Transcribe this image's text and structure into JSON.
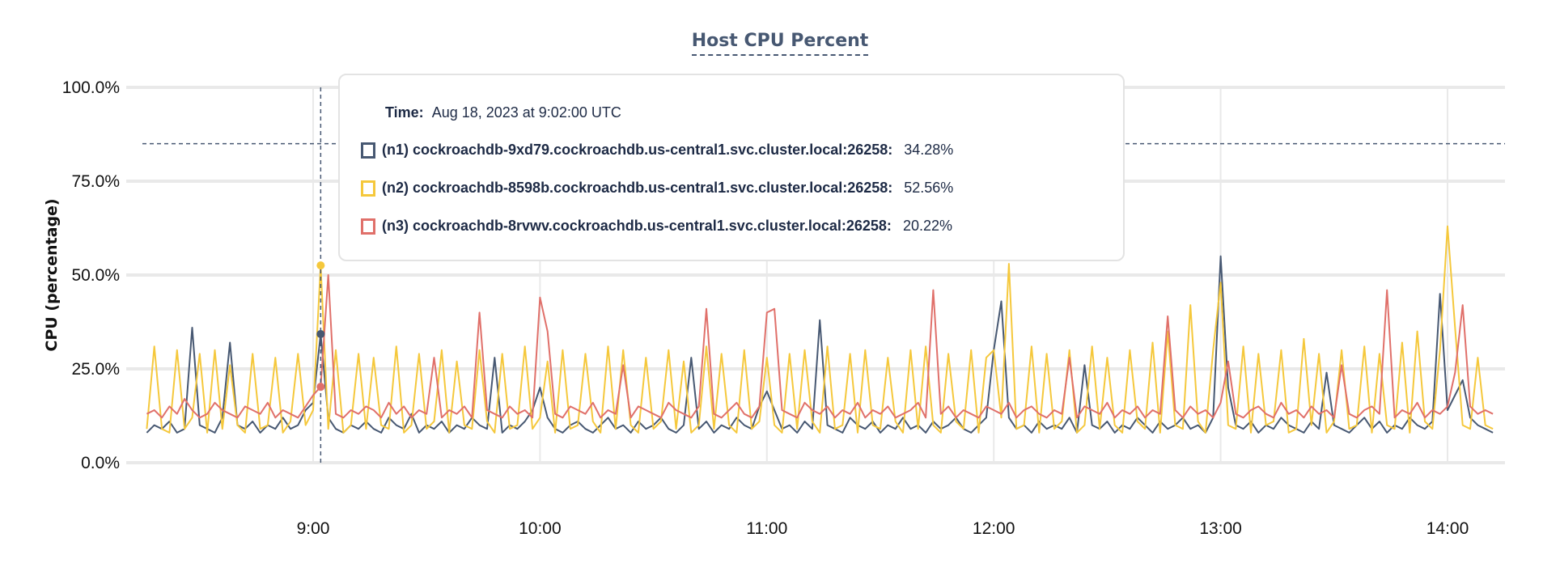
{
  "chart_data": {
    "type": "line",
    "title": "Host CPU Percent",
    "ylabel": "CPU (percentage)",
    "xlabel": "",
    "ylim": [
      0,
      100
    ],
    "yticks": [
      "0.0%",
      "25.0%",
      "50.0%",
      "75.0%",
      "100.0%"
    ],
    "ytick_values": [
      0,
      25,
      50,
      75,
      100
    ],
    "xticks": [
      "9:00",
      "10:00",
      "11:00",
      "12:00",
      "13:00",
      "14:00"
    ],
    "x_start": "08:16",
    "x_end": "14:12",
    "x_step_minutes": 2,
    "grid": true,
    "threshold": 85,
    "series": [
      {
        "name": "(n1) cockroachdb-9xd79.cockroachdb.us-central1.svc.cluster.local:26258",
        "color": "#475872",
        "values": [
          8,
          10,
          9,
          11,
          8,
          9,
          36,
          10,
          9,
          8,
          12,
          32,
          10,
          9,
          11,
          8,
          10,
          9,
          12,
          9,
          10,
          14,
          16,
          34.28,
          12,
          9,
          8,
          10,
          9,
          11,
          9,
          8,
          12,
          10,
          9,
          13,
          8,
          10,
          9,
          11,
          8,
          10,
          9,
          12,
          10,
          9,
          28,
          8,
          10,
          9,
          11,
          14,
          20,
          12,
          9,
          8,
          10,
          11,
          9,
          8,
          10,
          12,
          9,
          10,
          8,
          11,
          9,
          10,
          12,
          9,
          8,
          10,
          28,
          9,
          11,
          8,
          10,
          9,
          12,
          10,
          9,
          15,
          19,
          14,
          9,
          10,
          8,
          11,
          9,
          38,
          10,
          9,
          8,
          12,
          10,
          9,
          11,
          8,
          10,
          9,
          12,
          9,
          10,
          8,
          11,
          9,
          10,
          12,
          9,
          8,
          10,
          12,
          30,
          43,
          12,
          9,
          10,
          8,
          11,
          9,
          10,
          9,
          12,
          8,
          26,
          10,
          9,
          11,
          8,
          10,
          9,
          12,
          10,
          8,
          11,
          9,
          10,
          12,
          9,
          10,
          8,
          12,
          55,
          20,
          10,
          9,
          11,
          8,
          10,
          9,
          12,
          10,
          9,
          8,
          11,
          9,
          24,
          10,
          9,
          8,
          10,
          12,
          9,
          11,
          8,
          10,
          9,
          12,
          10,
          9,
          11,
          45,
          14,
          18,
          22,
          12,
          10,
          9,
          8
        ]
      },
      {
        "name": "(n2) cockroachdb-8598b.cockroachdb.us-central1.svc.cluster.local:26258",
        "color": "#f5c83c",
        "values": [
          9,
          31,
          9,
          8,
          30,
          9,
          12,
          29,
          8,
          30,
          9,
          26,
          10,
          8,
          29,
          9,
          10,
          28,
          8,
          11,
          29,
          10,
          14,
          52.56,
          9,
          30,
          8,
          10,
          29,
          9,
          28,
          10,
          9,
          31,
          8,
          10,
          29,
          9,
          11,
          30,
          8,
          27,
          10,
          9,
          30,
          11,
          8,
          29,
          9,
          10,
          31,
          9,
          12,
          27,
          8,
          30,
          9,
          10,
          29,
          11,
          8,
          31,
          9,
          30,
          10,
          8,
          28,
          9,
          11,
          30,
          9,
          27,
          8,
          10,
          31,
          9,
          29,
          10,
          8,
          30,
          9,
          11,
          28,
          10,
          8,
          29,
          9,
          30,
          11,
          8,
          31,
          9,
          10,
          29,
          8,
          30,
          10,
          9,
          28,
          11,
          8,
          30,
          9,
          31,
          10,
          8,
          29,
          11,
          9,
          30,
          8,
          28,
          30,
          12,
          53,
          9,
          10,
          31,
          8,
          29,
          9,
          11,
          30,
          8,
          10,
          31,
          9,
          28,
          10,
          8,
          30,
          11,
          9,
          32,
          8,
          35,
          10,
          9,
          42,
          11,
          8,
          30,
          48,
          10,
          9,
          31,
          8,
          29,
          10,
          11,
          30,
          8,
          9,
          33,
          10,
          29,
          8,
          11,
          30,
          9,
          10,
          31,
          8,
          29,
          10,
          9,
          32,
          8,
          35,
          11,
          9,
          30,
          63,
          36,
          10,
          9,
          28,
          10,
          9
        ]
      },
      {
        "name": "(n3) cockroachdb-8rvwv.cockroachdb.us-central1.svc.cluster.local:26258",
        "color": "#e0706a",
        "values": [
          13,
          14,
          12,
          15,
          13,
          17,
          14,
          12,
          13,
          16,
          14,
          13,
          12,
          15,
          14,
          13,
          16,
          12,
          14,
          13,
          12,
          15,
          18,
          20.22,
          50,
          13,
          12,
          14,
          13,
          15,
          14,
          12,
          16,
          13,
          15,
          12,
          14,
          13,
          28,
          12,
          14,
          13,
          15,
          12,
          40,
          14,
          13,
          12,
          15,
          13,
          14,
          12,
          44,
          35,
          13,
          12,
          15,
          14,
          13,
          16,
          12,
          14,
          13,
          26,
          12,
          15,
          14,
          13,
          12,
          16,
          14,
          13,
          12,
          15,
          41,
          13,
          12,
          14,
          16,
          13,
          12,
          15,
          40,
          41,
          14,
          13,
          12,
          16,
          14,
          13,
          15,
          12,
          14,
          13,
          16,
          12,
          14,
          13,
          15,
          12,
          13,
          14,
          16,
          12,
          46,
          13,
          15,
          12,
          14,
          13,
          12,
          15,
          14,
          13,
          16,
          12,
          14,
          15,
          13,
          12,
          14,
          13,
          28,
          12,
          15,
          14,
          13,
          16,
          12,
          14,
          13,
          15,
          12,
          14,
          13,
          39,
          14,
          12,
          15,
          13,
          14,
          12,
          16,
          27,
          13,
          12,
          14,
          15,
          13,
          12,
          16,
          13,
          14,
          12,
          15,
          13,
          14,
          12,
          26,
          13,
          12,
          14,
          15,
          13,
          46,
          12,
          14,
          13,
          16,
          12,
          14,
          13,
          15,
          24,
          42,
          15,
          13,
          14,
          13
        ]
      }
    ]
  },
  "tooltip": {
    "time_label": "Time:",
    "time_value": "Aug 18, 2023 at 9:02:00 UTC",
    "hover_index": 23,
    "rows": [
      {
        "label": "(n1) cockroachdb-9xd79.cockroachdb.us-central1.svc.cluster.local:26258:",
        "value": "34.28%"
      },
      {
        "label": "(n2) cockroachdb-8598b.cockroachdb.us-central1.svc.cluster.local:26258:",
        "value": "52.56%"
      },
      {
        "label": "(n3) cockroachdb-8rvwv.cockroachdb.us-central1.svc.cluster.local:26258:",
        "value": "20.22%"
      }
    ]
  }
}
